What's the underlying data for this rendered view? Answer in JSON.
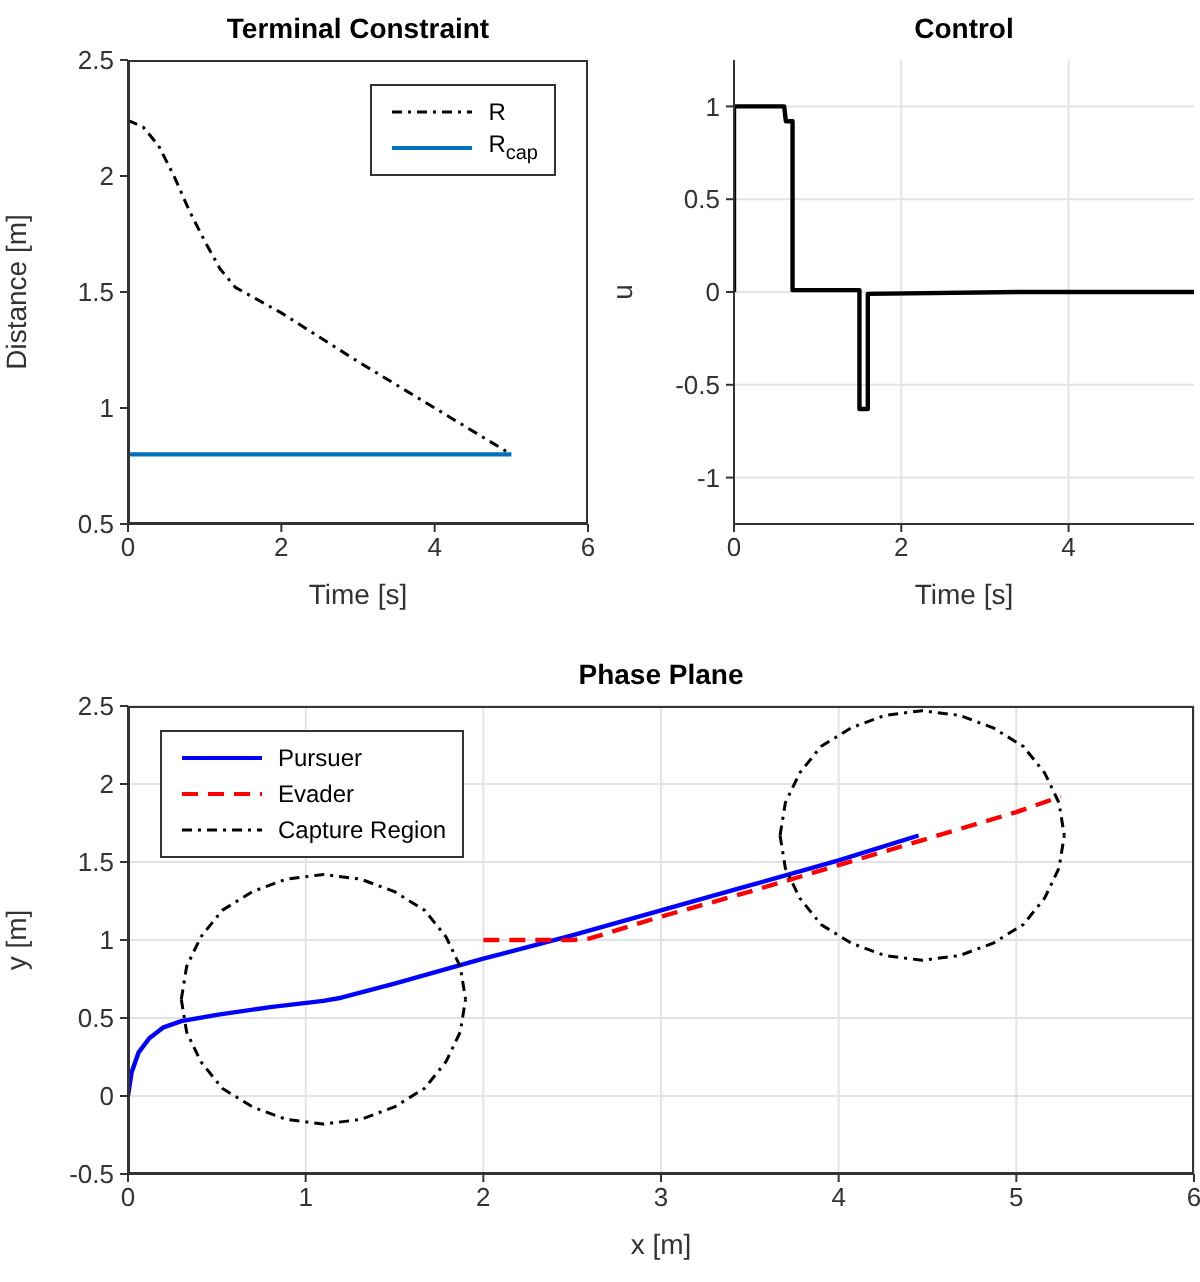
{
  "chart_data": [
    {
      "type": "line",
      "title": "Terminal Constraint",
      "xlabel": "Time [s]",
      "ylabel": "Distance [m]",
      "xlim": [
        0,
        6
      ],
      "xticks": [
        0,
        2,
        4,
        6
      ],
      "ylim": [
        0.5,
        2.5
      ],
      "yticks": [
        0.5,
        1,
        1.5,
        2,
        2.5
      ],
      "grid": false,
      "legend": "top right",
      "series": [
        {
          "name": "R",
          "color": "#000000",
          "line_style": "dashdot",
          "x": [
            0,
            0.2,
            0.4,
            0.6,
            0.8,
            1.0,
            1.2,
            1.4,
            2,
            3,
            4,
            5
          ],
          "values": [
            2.24,
            2.21,
            2.13,
            2.0,
            1.85,
            1.72,
            1.6,
            1.52,
            1.41,
            1.2,
            1.0,
            0.8
          ]
        },
        {
          "name": "R$_{cap}$",
          "color": "#0072bd",
          "line_style": "solid",
          "x": [
            0,
            5
          ],
          "values": [
            0.8,
            0.8
          ]
        }
      ]
    },
    {
      "type": "line",
      "title": "Control",
      "xlabel": "Time [s]",
      "ylabel": "u",
      "xlim": [
        0,
        5.5
      ],
      "xticks": [
        0,
        2,
        4
      ],
      "ylim": [
        -1.25,
        1.25
      ],
      "yticks": [
        -1,
        -0.5,
        0,
        0.5,
        1
      ],
      "grid": true,
      "legend": false,
      "series": [
        {
          "color": "#000000",
          "line_style": "solid",
          "x": [
            0,
            0,
            0.6,
            0.62,
            0.7,
            0.7,
            1.5,
            1.5,
            1.6,
            1.6,
            3.4,
            5.5
          ],
          "values": [
            0,
            1,
            1,
            0.92,
            0.92,
            0.01,
            0.01,
            -0.63,
            -0.63,
            -0.01,
            0,
            0
          ]
        }
      ]
    },
    {
      "type": "line",
      "title": "Phase Plane",
      "xlabel": "x [m]",
      "ylabel": "y [m]",
      "xlim": [
        0,
        6
      ],
      "xticks": [
        0,
        1,
        2,
        3,
        4,
        5,
        6
      ],
      "ylim": [
        -0.5,
        2.5
      ],
      "yticks": [
        -0.5,
        0,
        0.5,
        1,
        1.5,
        2,
        2.5
      ],
      "grid": true,
      "legend": "top left",
      "series": [
        {
          "name": "Pursuer",
          "color": "#0000ff",
          "line_style": "solid",
          "x": [
            0,
            0.02,
            0.06,
            0.12,
            0.2,
            0.3,
            0.5,
            0.8,
            1.1,
            1.2,
            1.5,
            2,
            2.5,
            3,
            3.5,
            4,
            4.45
          ],
          "values": [
            0,
            0.15,
            0.28,
            0.37,
            0.44,
            0.48,
            0.52,
            0.57,
            0.61,
            0.63,
            0.72,
            0.88,
            1.03,
            1.19,
            1.35,
            1.51,
            1.67
          ]
        },
        {
          "name": "Evader",
          "color": "#ff0000",
          "line_style": "dashed",
          "x": [
            2,
            2.5,
            2.6,
            3,
            3.5,
            4,
            4.5,
            5,
            5.25
          ],
          "values": [
            1.0,
            1.0,
            1.01,
            1.15,
            1.31,
            1.48,
            1.65,
            1.82,
            1.92
          ]
        },
        {
          "name": "Capture Region",
          "color": "#000000",
          "line_style": "dashdot",
          "x": [
            0.3,
            0.33,
            0.41,
            0.53,
            0.7,
            0.89,
            1.1,
            1.31,
            1.5,
            1.67,
            1.79,
            1.87,
            1.9,
            null,
            0.3,
            0.33,
            0.41,
            0.53,
            0.7,
            0.89,
            1.1,
            1.31,
            1.5,
            1.67,
            1.79,
            1.87,
            1.9,
            null,
            3.67,
            3.7,
            3.78,
            3.9,
            4.07,
            4.26,
            4.47,
            4.68,
            4.87,
            5.04,
            5.16,
            5.24,
            5.27,
            null,
            3.67,
            3.7,
            3.78,
            3.9,
            4.07,
            4.26,
            4.47,
            4.68,
            4.87,
            5.04,
            5.16,
            5.24,
            5.27
          ],
          "values": [
            0.62,
            0.83,
            1.02,
            1.19,
            1.31,
            1.39,
            1.42,
            1.39,
            1.31,
            1.19,
            1.02,
            0.83,
            0.62,
            null,
            0.62,
            0.41,
            0.22,
            0.05,
            -0.07,
            -0.15,
            -0.18,
            -0.15,
            -0.07,
            0.05,
            0.22,
            0.41,
            0.62,
            null,
            1.67,
            1.88,
            2.07,
            2.24,
            2.36,
            2.44,
            2.47,
            2.44,
            2.36,
            2.24,
            2.07,
            1.88,
            1.67,
            null,
            1.67,
            1.46,
            1.27,
            1.1,
            0.98,
            0.9,
            0.87,
            0.9,
            0.98,
            1.1,
            1.27,
            1.46,
            1.67
          ]
        }
      ]
    }
  ]
}
